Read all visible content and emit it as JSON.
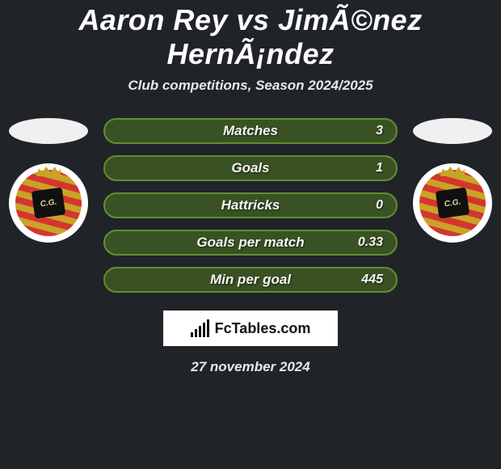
{
  "title": "Aaron Rey vs JimÃ©nez HernÃ¡ndez",
  "subtitle": "Club competitions, Season 2024/2025",
  "date": "27 november 2024",
  "logo_text": "FcTables.com",
  "colors": {
    "background": "#202428",
    "stat_border": "#5f8f33",
    "stat_bg": "#3a5223"
  },
  "stats": [
    {
      "label": "Matches",
      "value": "3"
    },
    {
      "label": "Goals",
      "value": "1"
    },
    {
      "label": "Hattricks",
      "value": "0"
    },
    {
      "label": "Goals per match",
      "value": "0.33"
    },
    {
      "label": "Min per goal",
      "value": "445"
    }
  ],
  "club_badge_text": "C.G."
}
